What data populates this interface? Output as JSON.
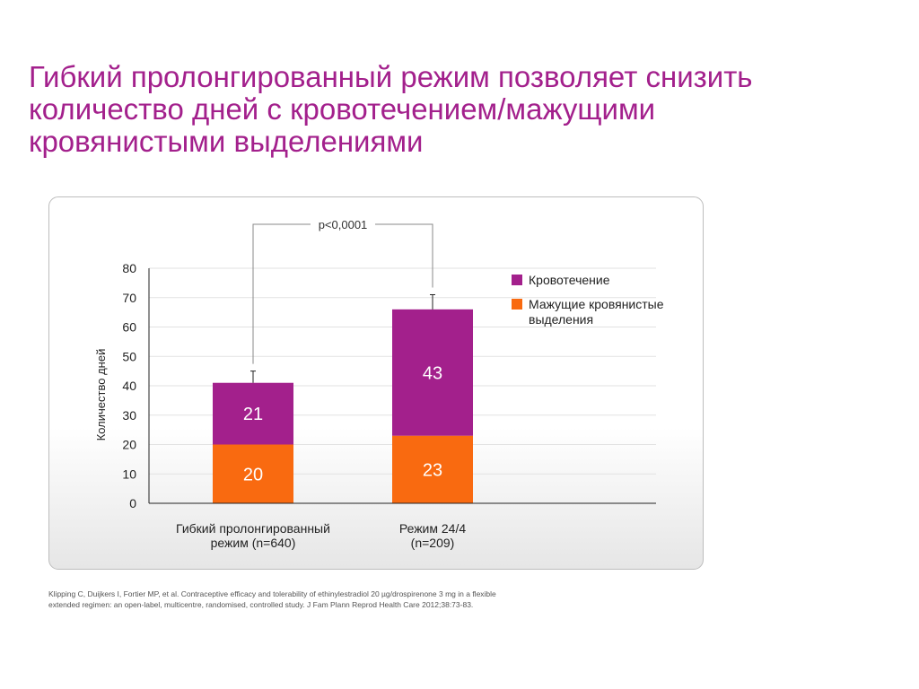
{
  "title": {
    "lines": [
      "Гибкий пролонгированный режим позволяет снизить",
      "количество дней с кровотечением/мажущими",
      "кровянистыми выделениями"
    ]
  },
  "citation": {
    "lines": [
      "Klipping C, Duijkers I, Fortier MP, et al. Contraceptive efficacy and tolerability of ethinylestradiol 20 µg/drospirenone 3 mg in a flexible",
      "extended regimen: an open-label, multicentre, randomised, controlled study. J Fam Plann Reprod Health Care 2012;38:73-83."
    ]
  },
  "colors": {
    "title": "#a3208c",
    "bleeding": "#a3208c",
    "spotting": "#f96a10",
    "axis": "#222222",
    "grid": "#e2e2e2",
    "bracket": "#888888"
  },
  "chart_data": {
    "type": "bar",
    "stacked": true,
    "categories": [
      "Гибкий пролонгированный режим (n=640)",
      "Режим 24/4 (n=209)"
    ],
    "category_lines": [
      [
        "Гибкий пролонгированный",
        "режим (n=640)"
      ],
      [
        "Режим 24/4",
        "(n=209)"
      ]
    ],
    "series": [
      {
        "name": "Мажущие кровянистые выделения",
        "legend_lines": [
          "Мажущие кровянистые",
          "выделения"
        ],
        "values": [
          20,
          23
        ],
        "color": "#f96a10"
      },
      {
        "name": "Кровотечение",
        "legend_lines": [
          "Кровотечение"
        ],
        "values": [
          21,
          43
        ],
        "color": "#a3208c"
      }
    ],
    "data_labels": [
      [
        "20",
        "23"
      ],
      [
        "21",
        "43"
      ]
    ],
    "error_bar_upper": [
      45,
      71
    ],
    "ylabel": "Количество дней",
    "xlabel": "",
    "ylim": [
      0,
      80
    ],
    "yticks": [
      0,
      10,
      20,
      30,
      40,
      50,
      60,
      70,
      80
    ],
    "grid": true,
    "legend_position": "top-right",
    "legend_order": [
      1,
      0
    ],
    "annotation": "p<0,0001"
  }
}
